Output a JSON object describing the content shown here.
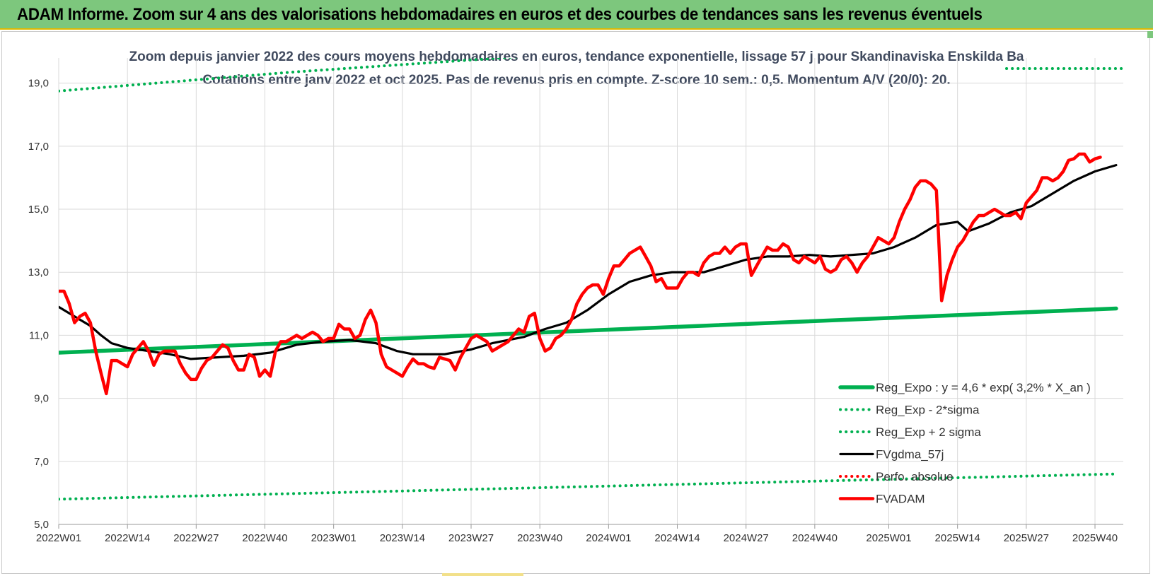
{
  "header": {
    "title": "ADAM Informe. Zoom sur 4 ans des valorisations hebdomadaires en euros et des courbes de tendances sans les revenus éventuels"
  },
  "chart_data": {
    "type": "line",
    "title": "Zoom depuis janvier 2022 des cours moyens hebdomadaires en euros, tendance exponentielle, lissage 57 j pour Skandinaviska Enskilda Ba",
    "subtitle": "Cotations entre janv 2022 et oct 2025. Pas de revenus pris en compte. Z-score 10 sem.: 0,5. Momentum A/V (20/0): 20.",
    "xlabel": "",
    "ylabel": "",
    "ylim": [
      5,
      19.8
    ],
    "yticks": [
      5,
      7,
      9,
      11,
      13,
      15,
      17,
      19
    ],
    "ytick_labels": [
      "5,0",
      "7,0",
      "9,0",
      "11,0",
      "13,0",
      "15,0",
      "17,0",
      "19,0"
    ],
    "x_index_range": [
      0,
      196
    ],
    "x_ticks": [
      {
        "i": 0,
        "label": "2022W01"
      },
      {
        "i": 13,
        "label": "2022W14"
      },
      {
        "i": 26,
        "label": "2022W27"
      },
      {
        "i": 39,
        "label": "2022W40"
      },
      {
        "i": 52,
        "label": "2023W01"
      },
      {
        "i": 65,
        "label": "2023W14"
      },
      {
        "i": 78,
        "label": "2023W27"
      },
      {
        "i": 91,
        "label": "2023W40"
      },
      {
        "i": 104,
        "label": "2024W01"
      },
      {
        "i": 117,
        "label": "2024W14"
      },
      {
        "i": 130,
        "label": "2024W27"
      },
      {
        "i": 143,
        "label": "2024W40"
      },
      {
        "i": 157,
        "label": "2025W01"
      },
      {
        "i": 170,
        "label": "2025W14"
      },
      {
        "i": 183,
        "label": "2025W27"
      },
      {
        "i": 196,
        "label": "2025W40"
      }
    ],
    "grid": true,
    "legend_position": "bottom-right",
    "series": [
      {
        "name": "Reg_Expo : y = 4,6 * exp( 3,2% *  X_an )",
        "color": "#00b050",
        "style": "solid-thick",
        "points": [
          [
            0,
            10.45
          ],
          [
            200,
            11.85
          ]
        ]
      },
      {
        "name": "Reg_Exp - 2*sigma",
        "color": "#00b050",
        "style": "dotted",
        "points": [
          [
            0,
            5.8
          ],
          [
            200,
            6.6
          ]
        ]
      },
      {
        "name": "Reg_Exp + 2 sigma",
        "color": "#00b050",
        "style": "dotted",
        "points": [
          [
            0,
            18.75
          ],
          [
            22,
            19.05
          ],
          [
            44,
            19.35
          ],
          [
            66,
            19.6
          ],
          [
            88,
            19.85
          ],
          [
            110,
            20.1
          ],
          [
            132,
            20.35
          ],
          [
            154,
            20.6
          ],
          [
            176,
            20.8
          ],
          [
            200,
            21.0
          ]
        ]
      },
      {
        "name": "FVgdma_57j",
        "color": "#000000",
        "style": "solid",
        "points": [
          [
            0,
            11.9
          ],
          [
            3,
            11.6
          ],
          [
            6,
            11.3
          ],
          [
            8,
            11.0
          ],
          [
            10,
            10.75
          ],
          [
            13,
            10.6
          ],
          [
            17,
            10.5
          ],
          [
            21,
            10.4
          ],
          [
            25,
            10.25
          ],
          [
            30,
            10.3
          ],
          [
            35,
            10.35
          ],
          [
            40,
            10.45
          ],
          [
            45,
            10.7
          ],
          [
            50,
            10.8
          ],
          [
            55,
            10.85
          ],
          [
            60,
            10.75
          ],
          [
            64,
            10.5
          ],
          [
            67,
            10.4
          ],
          [
            73,
            10.4
          ],
          [
            78,
            10.55
          ],
          [
            82,
            10.75
          ],
          [
            88,
            10.95
          ],
          [
            92,
            11.2
          ],
          [
            96,
            11.4
          ],
          [
            100,
            11.8
          ],
          [
            104,
            12.3
          ],
          [
            108,
            12.7
          ],
          [
            112,
            12.9
          ],
          [
            116,
            13.0
          ],
          [
            122,
            13.0
          ],
          [
            126,
            13.2
          ],
          [
            130,
            13.4
          ],
          [
            134,
            13.5
          ],
          [
            138,
            13.5
          ],
          [
            142,
            13.55
          ],
          [
            146,
            13.5
          ],
          [
            150,
            13.55
          ],
          [
            154,
            13.6
          ],
          [
            158,
            13.8
          ],
          [
            162,
            14.1
          ],
          [
            166,
            14.5
          ],
          [
            170,
            14.6
          ],
          [
            172,
            14.3
          ],
          [
            176,
            14.55
          ],
          [
            180,
            14.9
          ],
          [
            184,
            15.1
          ],
          [
            188,
            15.5
          ],
          [
            192,
            15.9
          ],
          [
            196,
            16.2
          ],
          [
            200,
            16.4
          ]
        ]
      },
      {
        "name": "Perfo. absolue",
        "color": "#ff0000",
        "style": "dotted",
        "points": []
      },
      {
        "name": "FVADAM",
        "color": "#ff0000",
        "style": "solid-thick",
        "points": [
          [
            0,
            12.4
          ],
          [
            1,
            12.4
          ],
          [
            2,
            12.0
          ],
          [
            3,
            11.4
          ],
          [
            4,
            11.6
          ],
          [
            5,
            11.7
          ],
          [
            6,
            11.4
          ],
          [
            7,
            10.5
          ],
          [
            8,
            9.8
          ],
          [
            9,
            9.15
          ],
          [
            10,
            10.2
          ],
          [
            11,
            10.2
          ],
          [
            12,
            10.1
          ],
          [
            13,
            10.0
          ],
          [
            14,
            10.4
          ],
          [
            15,
            10.6
          ],
          [
            16,
            10.8
          ],
          [
            17,
            10.5
          ],
          [
            18,
            10.05
          ],
          [
            19,
            10.4
          ],
          [
            20,
            10.5
          ],
          [
            21,
            10.5
          ],
          [
            22,
            10.5
          ],
          [
            23,
            10.1
          ],
          [
            24,
            9.8
          ],
          [
            25,
            9.6
          ],
          [
            26,
            9.6
          ],
          [
            27,
            9.95
          ],
          [
            28,
            10.2
          ],
          [
            29,
            10.3
          ],
          [
            30,
            10.5
          ],
          [
            31,
            10.7
          ],
          [
            32,
            10.6
          ],
          [
            33,
            10.2
          ],
          [
            34,
            9.9
          ],
          [
            35,
            9.9
          ],
          [
            36,
            10.4
          ],
          [
            37,
            10.3
          ],
          [
            38,
            9.7
          ],
          [
            39,
            9.9
          ],
          [
            40,
            9.7
          ],
          [
            41,
            10.5
          ],
          [
            42,
            10.8
          ],
          [
            43,
            10.8
          ],
          [
            44,
            10.9
          ],
          [
            45,
            11.0
          ],
          [
            46,
            10.9
          ],
          [
            47,
            11.0
          ],
          [
            48,
            11.1
          ],
          [
            49,
            11.0
          ],
          [
            50,
            10.8
          ],
          [
            51,
            10.9
          ],
          [
            52,
            10.9
          ],
          [
            53,
            11.35
          ],
          [
            54,
            11.2
          ],
          [
            55,
            11.2
          ],
          [
            56,
            10.9
          ],
          [
            57,
            11.0
          ],
          [
            58,
            11.5
          ],
          [
            59,
            11.8
          ],
          [
            60,
            11.4
          ],
          [
            61,
            10.4
          ],
          [
            62,
            10.0
          ],
          [
            63,
            9.9
          ],
          [
            64,
            9.8
          ],
          [
            65,
            9.7
          ],
          [
            66,
            10.0
          ],
          [
            67,
            10.25
          ],
          [
            68,
            10.1
          ],
          [
            69,
            10.1
          ],
          [
            70,
            10.0
          ],
          [
            71,
            9.95
          ],
          [
            72,
            10.3
          ],
          [
            73,
            10.25
          ],
          [
            74,
            10.2
          ],
          [
            75,
            9.9
          ],
          [
            76,
            10.3
          ],
          [
            77,
            10.6
          ],
          [
            78,
            10.9
          ],
          [
            79,
            11.0
          ],
          [
            80,
            10.9
          ],
          [
            81,
            10.8
          ],
          [
            82,
            10.5
          ],
          [
            83,
            10.6
          ],
          [
            84,
            10.7
          ],
          [
            85,
            10.8
          ],
          [
            86,
            11.0
          ],
          [
            87,
            11.2
          ],
          [
            88,
            11.1
          ],
          [
            89,
            11.6
          ],
          [
            90,
            11.7
          ],
          [
            91,
            10.9
          ],
          [
            92,
            10.5
          ],
          [
            93,
            10.6
          ],
          [
            94,
            10.9
          ],
          [
            95,
            11.0
          ],
          [
            96,
            11.2
          ],
          [
            97,
            11.5
          ],
          [
            98,
            12.0
          ],
          [
            99,
            12.3
          ],
          [
            100,
            12.5
          ],
          [
            101,
            12.6
          ],
          [
            102,
            12.6
          ],
          [
            103,
            12.3
          ],
          [
            104,
            12.8
          ],
          [
            105,
            13.2
          ],
          [
            106,
            13.2
          ],
          [
            107,
            13.4
          ],
          [
            108,
            13.6
          ],
          [
            109,
            13.7
          ],
          [
            110,
            13.8
          ],
          [
            111,
            13.5
          ],
          [
            112,
            13.2
          ],
          [
            113,
            12.7
          ],
          [
            114,
            12.8
          ],
          [
            115,
            12.5
          ],
          [
            116,
            12.5
          ],
          [
            117,
            12.5
          ],
          [
            118,
            12.8
          ],
          [
            119,
            13.0
          ],
          [
            120,
            13.0
          ],
          [
            121,
            12.9
          ],
          [
            122,
            13.3
          ],
          [
            123,
            13.5
          ],
          [
            124,
            13.6
          ],
          [
            125,
            13.6
          ],
          [
            126,
            13.8
          ],
          [
            127,
            13.6
          ],
          [
            128,
            13.8
          ],
          [
            129,
            13.9
          ],
          [
            130,
            13.9
          ],
          [
            131,
            12.9
          ],
          [
            132,
            13.2
          ],
          [
            133,
            13.5
          ],
          [
            134,
            13.8
          ],
          [
            135,
            13.7
          ],
          [
            136,
            13.7
          ],
          [
            137,
            13.9
          ],
          [
            138,
            13.8
          ],
          [
            139,
            13.4
          ],
          [
            140,
            13.3
          ],
          [
            141,
            13.5
          ],
          [
            142,
            13.4
          ],
          [
            143,
            13.3
          ],
          [
            144,
            13.5
          ],
          [
            145,
            13.1
          ],
          [
            146,
            13.0
          ],
          [
            147,
            13.1
          ],
          [
            148,
            13.4
          ],
          [
            149,
            13.5
          ],
          [
            150,
            13.3
          ],
          [
            151,
            13.0
          ],
          [
            152,
            13.3
          ],
          [
            153,
            13.5
          ],
          [
            154,
            13.8
          ],
          [
            155,
            14.1
          ],
          [
            156,
            14.0
          ],
          [
            157,
            13.9
          ],
          [
            158,
            14.1
          ],
          [
            159,
            14.6
          ],
          [
            160,
            15.0
          ],
          [
            161,
            15.3
          ],
          [
            162,
            15.7
          ],
          [
            163,
            15.9
          ],
          [
            164,
            15.9
          ],
          [
            165,
            15.8
          ],
          [
            166,
            15.6
          ],
          [
            167,
            12.1
          ],
          [
            168,
            12.9
          ],
          [
            169,
            13.4
          ],
          [
            170,
            13.8
          ],
          [
            171,
            14.0
          ],
          [
            172,
            14.3
          ],
          [
            173,
            14.6
          ],
          [
            174,
            14.8
          ],
          [
            175,
            14.8
          ],
          [
            176,
            14.9
          ],
          [
            177,
            15.0
          ],
          [
            178,
            14.9
          ],
          [
            179,
            14.8
          ],
          [
            180,
            14.8
          ],
          [
            181,
            14.9
          ],
          [
            182,
            14.7
          ],
          [
            183,
            15.2
          ],
          [
            184,
            15.4
          ],
          [
            185,
            15.6
          ],
          [
            186,
            16.0
          ],
          [
            187,
            16.0
          ],
          [
            188,
            15.9
          ],
          [
            189,
            16.0
          ],
          [
            190,
            16.2
          ],
          [
            191,
            16.55
          ],
          [
            192,
            16.6
          ],
          [
            193,
            16.75
          ],
          [
            194,
            16.75
          ],
          [
            195,
            16.5
          ],
          [
            196,
            16.6
          ],
          [
            197,
            16.65
          ]
        ]
      }
    ]
  }
}
